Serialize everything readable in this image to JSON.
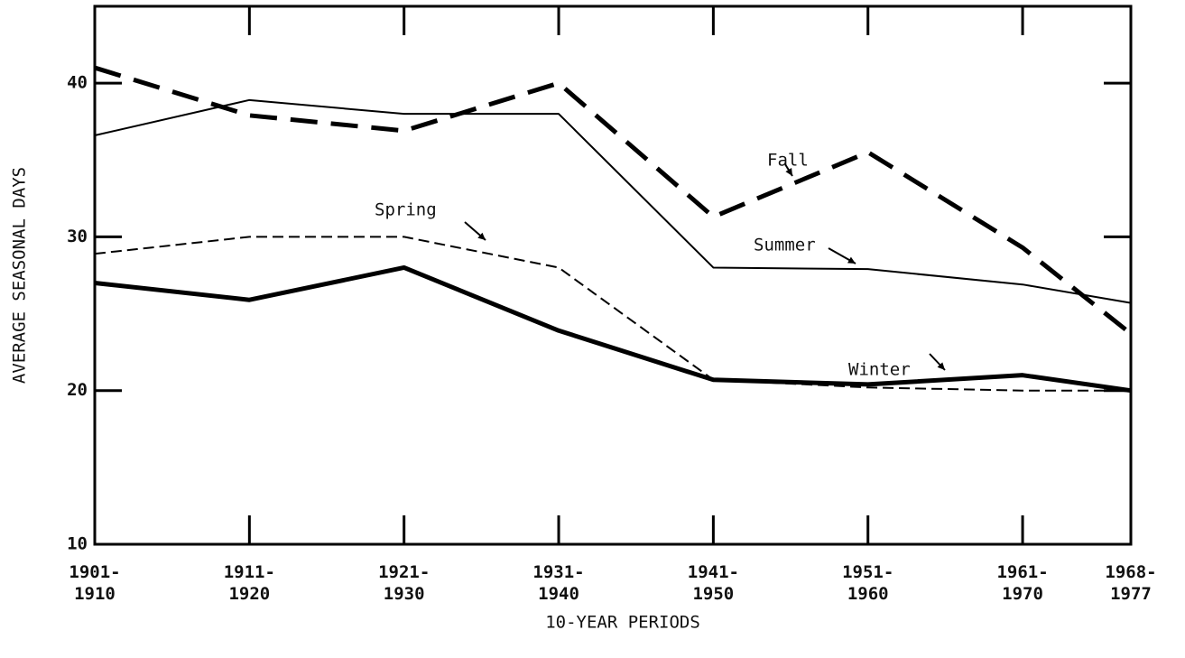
{
  "chart_data": {
    "type": "line",
    "x_label": "10-YEAR PERIODS",
    "y_label": "AVERAGE SEASONAL DAYS",
    "x": [
      1901,
      1911,
      1921,
      1931,
      1941,
      1951,
      1961,
      1968
    ],
    "xlim": [
      1901,
      1968
    ],
    "xticks": [
      {
        "value": 1901,
        "label": "1901-\n1910"
      },
      {
        "value": 1911,
        "label": "1911-\n1920"
      },
      {
        "value": 1921,
        "label": "1921-\n1930"
      },
      {
        "value": 1931,
        "label": "1931-\n1940"
      },
      {
        "value": 1941,
        "label": "1941-\n1950"
      },
      {
        "value": 1951,
        "label": "1951-\n1960"
      },
      {
        "value": 1961,
        "label": "1961-\n1970"
      },
      {
        "value": 1968,
        "label": "1968-\n1977"
      }
    ],
    "ylim": [
      10,
      45
    ],
    "yticks": [
      10,
      20,
      30,
      40
    ],
    "series": [
      {
        "name": "Fall",
        "color": "#000000",
        "line_style": "dashed",
        "line_width": 5,
        "values": [
          41,
          37.9,
          36.9,
          40,
          31.3,
          35.5,
          29.3,
          23.7
        ]
      },
      {
        "name": "Summer",
        "color": "#000000",
        "line_style": "solid",
        "line_width": 2,
        "values": [
          36.6,
          38.9,
          38,
          38,
          28,
          27.9,
          26.9,
          25.7
        ]
      },
      {
        "name": "Spring",
        "color": "#000000",
        "line_style": "dashed",
        "line_width": 2,
        "values": [
          28.9,
          30,
          30,
          28,
          20.7,
          20.2,
          20,
          20
        ]
      },
      {
        "name": "Winter",
        "color": "#000000",
        "line_style": "solid",
        "line_width": 5,
        "values": [
          27,
          25.9,
          28,
          23.9,
          20.7,
          20.4,
          21,
          20
        ]
      }
    ]
  }
}
